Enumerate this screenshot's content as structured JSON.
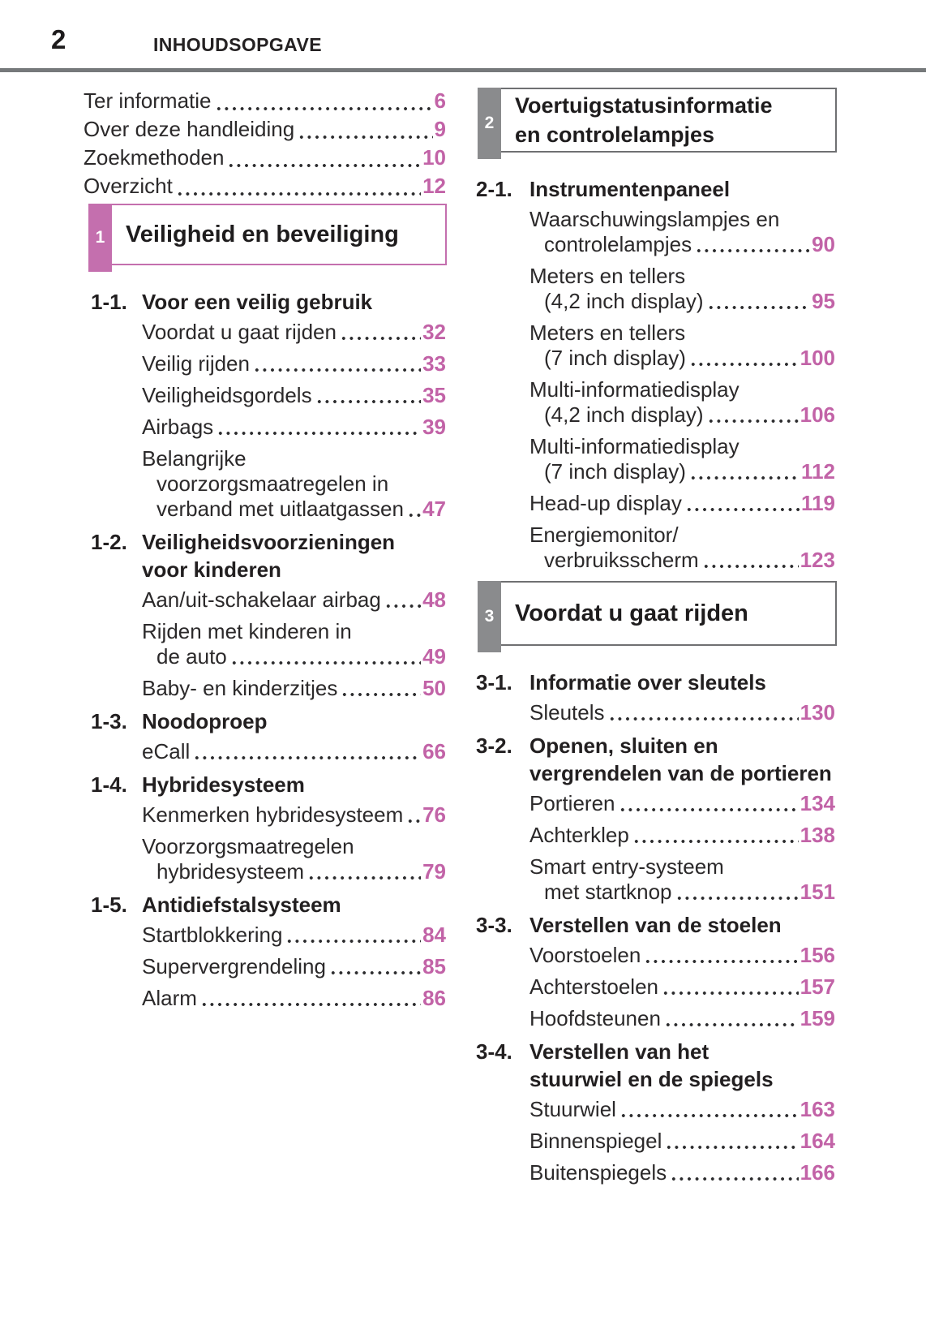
{
  "page": {
    "number": "2",
    "header": "INHOUDSOPGAVE"
  },
  "colors": {
    "accent_pink": "#c46fae",
    "page_number_pink": "#c263a7",
    "tab_gray": "#8a8b8d",
    "rule_gray": "#76797b"
  },
  "columns": {
    "left": [
      {
        "type": "front_toc",
        "items": [
          {
            "label": "Ter informatie",
            "page": "6"
          },
          {
            "label": "Over deze handleiding",
            "page": "9"
          },
          {
            "label": "Zoekmethoden",
            "page": "10"
          },
          {
            "label": "Overzicht",
            "page": "12"
          }
        ]
      },
      {
        "type": "section_box",
        "number": "1",
        "theme": "pink",
        "title_lines": [
          "Veiligheid en beveiliging"
        ]
      },
      {
        "type": "group",
        "label": "1-1.",
        "title_lines": [
          "Voor een veilig gebruik"
        ],
        "entries": [
          {
            "lines": [
              "Voordat u gaat rijden"
            ],
            "page": "32"
          },
          {
            "lines": [
              "Veilig rijden"
            ],
            "page": "33"
          },
          {
            "lines": [
              "Veiligheidsgordels"
            ],
            "page": "35"
          },
          {
            "lines": [
              "Airbags"
            ],
            "page": "39"
          },
          {
            "lines": [
              "Belangrijke",
              "voorzorgsmaatregelen in",
              "verband met uitlaatgassen"
            ],
            "page": "47"
          }
        ]
      },
      {
        "type": "group",
        "label": "1-2.",
        "title_lines": [
          "Veiligheidsvoorzieningen",
          "voor kinderen"
        ],
        "entries": [
          {
            "lines": [
              "Aan/uit-schakelaar airbag"
            ],
            "page": "48"
          },
          {
            "lines": [
              "Rijden met kinderen in",
              "de auto"
            ],
            "page": "49"
          },
          {
            "lines": [
              "Baby- en kinderzitjes"
            ],
            "page": "50"
          }
        ]
      },
      {
        "type": "group",
        "label": "1-3.",
        "title_lines": [
          "Noodoproep"
        ],
        "entries": [
          {
            "lines": [
              "eCall"
            ],
            "page": "66"
          }
        ]
      },
      {
        "type": "group",
        "label": "1-4.",
        "title_lines": [
          "Hybridesysteem"
        ],
        "entries": [
          {
            "lines": [
              "Kenmerken hybridesysteem"
            ],
            "page": "76"
          },
          {
            "lines": [
              "Voorzorgsmaatregelen",
              "hybridesysteem"
            ],
            "page": "79"
          }
        ]
      },
      {
        "type": "group",
        "label": "1-5.",
        "title_lines": [
          "Antidiefstalsysteem"
        ],
        "entries": [
          {
            "lines": [
              "Startblokkering"
            ],
            "page": "84"
          },
          {
            "lines": [
              "Supervergrendeling"
            ],
            "page": "85"
          },
          {
            "lines": [
              "Alarm"
            ],
            "page": "86"
          }
        ]
      }
    ],
    "right": [
      {
        "type": "section_box",
        "number": "2",
        "theme": "gray",
        "title_lines": [
          "Voertuigstatusinformatie",
          "en controlelampjes"
        ]
      },
      {
        "type": "group",
        "label": "2-1.",
        "title_lines": [
          "Instrumentenpaneel"
        ],
        "entries": [
          {
            "lines": [
              "Waarschuwingslampjes en",
              "controlelampjes"
            ],
            "page": "90"
          },
          {
            "lines": [
              "Meters en tellers",
              "(4,2 inch display)"
            ],
            "page": "95"
          },
          {
            "lines": [
              "Meters en tellers",
              "(7 inch display)"
            ],
            "page": "100"
          },
          {
            "lines": [
              "Multi-informatiedisplay",
              "(4,2 inch display)"
            ],
            "page": "106"
          },
          {
            "lines": [
              "Multi-informatiedisplay",
              "(7 inch display)"
            ],
            "page": "112"
          },
          {
            "lines": [
              "Head-up display"
            ],
            "page": "119"
          },
          {
            "lines": [
              "Energiemonitor/",
              "verbruiksscherm"
            ],
            "page": "123"
          }
        ]
      },
      {
        "type": "section_box",
        "number": "3",
        "theme": "gray",
        "title_lines": [
          "Voordat u gaat rijden"
        ]
      },
      {
        "type": "group",
        "label": "3-1.",
        "title_lines": [
          "Informatie over sleutels"
        ],
        "entries": [
          {
            "lines": [
              "Sleutels"
            ],
            "page": "130"
          }
        ]
      },
      {
        "type": "group",
        "label": "3-2.",
        "title_lines": [
          "Openen, sluiten en",
          "vergrendelen van de portieren"
        ],
        "entries": [
          {
            "lines": [
              "Portieren"
            ],
            "page": "134"
          },
          {
            "lines": [
              "Achterklep"
            ],
            "page": "138"
          },
          {
            "lines": [
              "Smart entry-systeem",
              "met startknop"
            ],
            "page": "151"
          }
        ]
      },
      {
        "type": "group",
        "label": "3-3.",
        "title_lines": [
          "Verstellen van de stoelen"
        ],
        "entries": [
          {
            "lines": [
              "Voorstoelen"
            ],
            "page": "156"
          },
          {
            "lines": [
              "Achterstoelen"
            ],
            "page": "157"
          },
          {
            "lines": [
              "Hoofdsteunen"
            ],
            "page": "159"
          }
        ]
      },
      {
        "type": "group",
        "label": "3-4.",
        "title_lines": [
          "Verstellen van het",
          "stuurwiel en de spiegels"
        ],
        "entries": [
          {
            "lines": [
              "Stuurwiel"
            ],
            "page": "163"
          },
          {
            "lines": [
              "Binnenspiegel"
            ],
            "page": "164"
          },
          {
            "lines": [
              "Buitenspiegels"
            ],
            "page": "166"
          }
        ]
      }
    ]
  }
}
